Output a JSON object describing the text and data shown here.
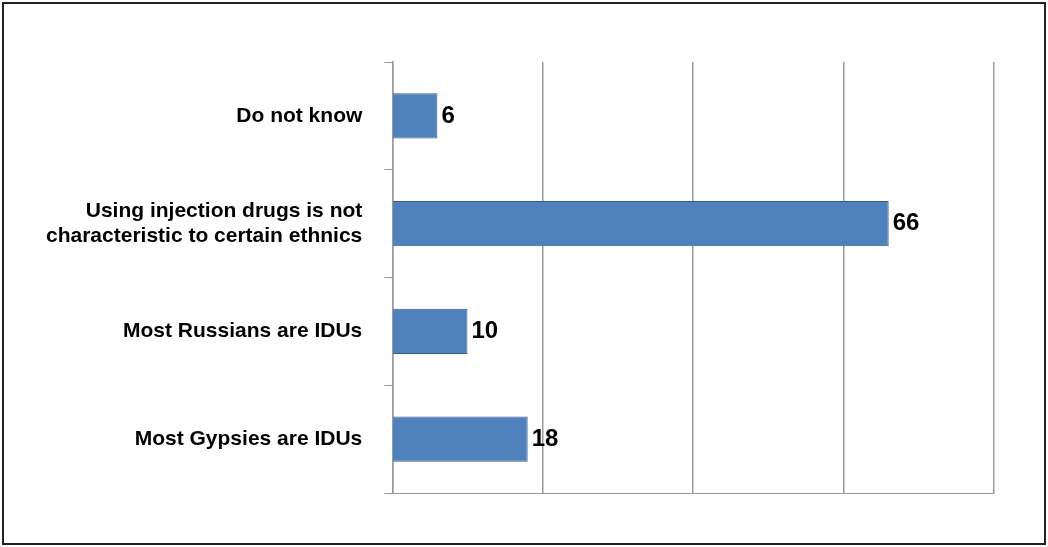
{
  "chart_data": {
    "type": "bar",
    "orientation": "horizontal",
    "categories": [
      "Do not know",
      "Using injection drugs is not characteristic to certain ethnics",
      "Most Russians are IDUs",
      "Most Gypsies are IDUs"
    ],
    "values": [
      6,
      66,
      10,
      18
    ],
    "color": "#4f81bd",
    "grid": "x",
    "data_labels": true,
    "tick_labels": "y"
  }
}
